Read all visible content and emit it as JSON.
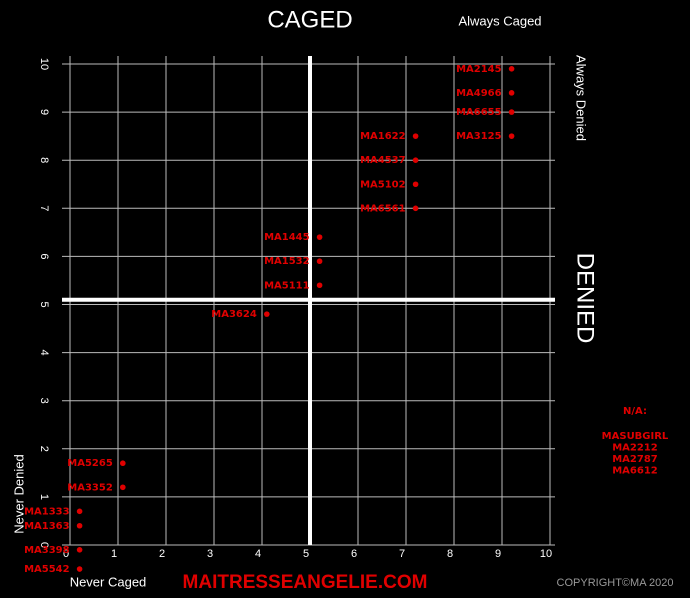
{
  "chart_data": {
    "type": "scatter",
    "title": "CAGED",
    "top_right_label": "Always Caged",
    "right_top_label": "Always Denied",
    "right_label": "DENIED",
    "left_label": "Never Denied",
    "bottom_label": "Never Caged",
    "footer": "MAITRESSEANGELIE.COM",
    "copyright": "COPYRIGHT©MA 2020",
    "na_title": "N/A:",
    "na_list": [
      "MASUBGIRL",
      "MA2212",
      "MA2787",
      "MA6612"
    ],
    "labels": [
      "MA2145",
      "MA4966",
      "MA6655",
      "MA3125",
      "MA1622",
      "MA4537",
      "MA5102",
      "MA6561",
      "MA1445",
      "MA1532",
      "MA5111",
      "MA3624",
      "MA5265",
      "MA3352",
      "MA1333",
      "MA1363",
      "MA3398",
      "MA5542"
    ],
    "x": [
      9.2,
      9.2,
      9.2,
      9.2,
      7.2,
      7.2,
      7.2,
      7.2,
      5.2,
      5.2,
      5.2,
      4.1,
      1.1,
      1.1,
      0.2,
      0.2,
      0.2,
      0.2
    ],
    "y": [
      9.9,
      9.4,
      9.0,
      8.5,
      8.5,
      8.0,
      7.5,
      7.0,
      6.4,
      5.9,
      5.4,
      4.8,
      1.7,
      1.2,
      0.7,
      0.4,
      -0.1,
      -0.5
    ],
    "color": "#e00000",
    "xlim": [
      0,
      10
    ],
    "ylim": [
      0,
      10
    ],
    "xticks": [
      0,
      1,
      2,
      3,
      4,
      5,
      6,
      7,
      8,
      9,
      10
    ],
    "yticks": [
      0,
      1,
      2,
      3,
      4,
      5,
      6,
      7,
      8,
      9,
      10
    ],
    "grid": true,
    "quadrant_x": 5,
    "quadrant_y": 5.1
  }
}
